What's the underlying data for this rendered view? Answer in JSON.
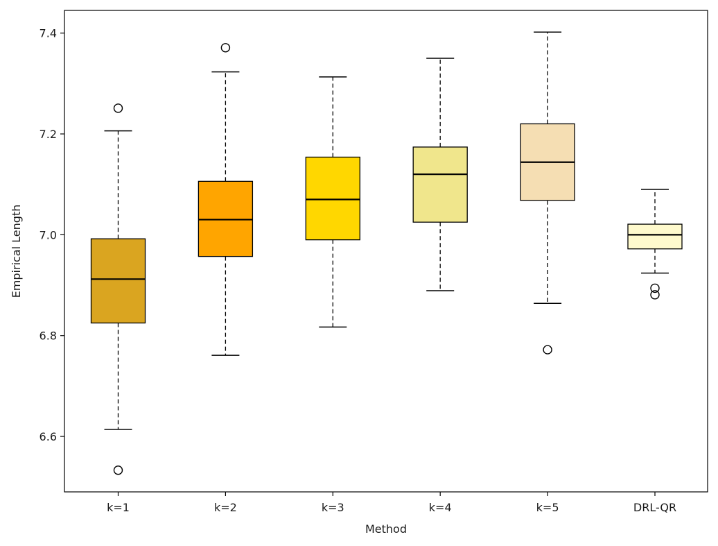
{
  "chart_data": {
    "type": "box",
    "xlabel": "Method",
    "ylabel": "Empirical Length",
    "ylim": [
      6.49,
      7.445
    ],
    "yticks": [
      6.6,
      6.8,
      7.0,
      7.2,
      7.4
    ],
    "ytick_labels": [
      "6.6",
      "6.8",
      "7.0",
      "7.2",
      "7.4"
    ],
    "grid": false,
    "categories": [
      "k=1",
      "k=2",
      "k=3",
      "k=4",
      "k=5",
      "DRL-QR"
    ],
    "boxes": [
      {
        "label": "k=1",
        "whisker_low": 6.614,
        "q1": 6.825,
        "median": 6.912,
        "q3": 6.992,
        "whisker_high": 7.206,
        "outliers": [
          7.251,
          6.533
        ],
        "color": "#DAA520"
      },
      {
        "label": "k=2",
        "whisker_low": 6.761,
        "q1": 6.957,
        "median": 7.03,
        "q3": 7.106,
        "whisker_high": 7.323,
        "outliers": [
          7.371
        ],
        "color": "#FFA500"
      },
      {
        "label": "k=3",
        "whisker_low": 6.817,
        "q1": 6.99,
        "median": 7.07,
        "q3": 7.154,
        "whisker_high": 7.313,
        "outliers": [],
        "color": "#FFD700"
      },
      {
        "label": "k=4",
        "whisker_low": 6.889,
        "q1": 7.025,
        "median": 7.12,
        "q3": 7.174,
        "whisker_high": 7.35,
        "outliers": [],
        "color": "#F0E68C"
      },
      {
        "label": "k=5",
        "whisker_low": 6.864,
        "q1": 7.068,
        "median": 7.144,
        "q3": 7.22,
        "whisker_high": 7.402,
        "outliers": [
          6.772
        ],
        "color": "#F5DEB3"
      },
      {
        "label": "DRL-QR",
        "whisker_low": 6.924,
        "q1": 6.972,
        "median": 7.0,
        "q3": 7.021,
        "whisker_high": 7.09,
        "outliers": [
          6.894,
          6.881
        ],
        "color": "#FFFACD"
      }
    ]
  }
}
